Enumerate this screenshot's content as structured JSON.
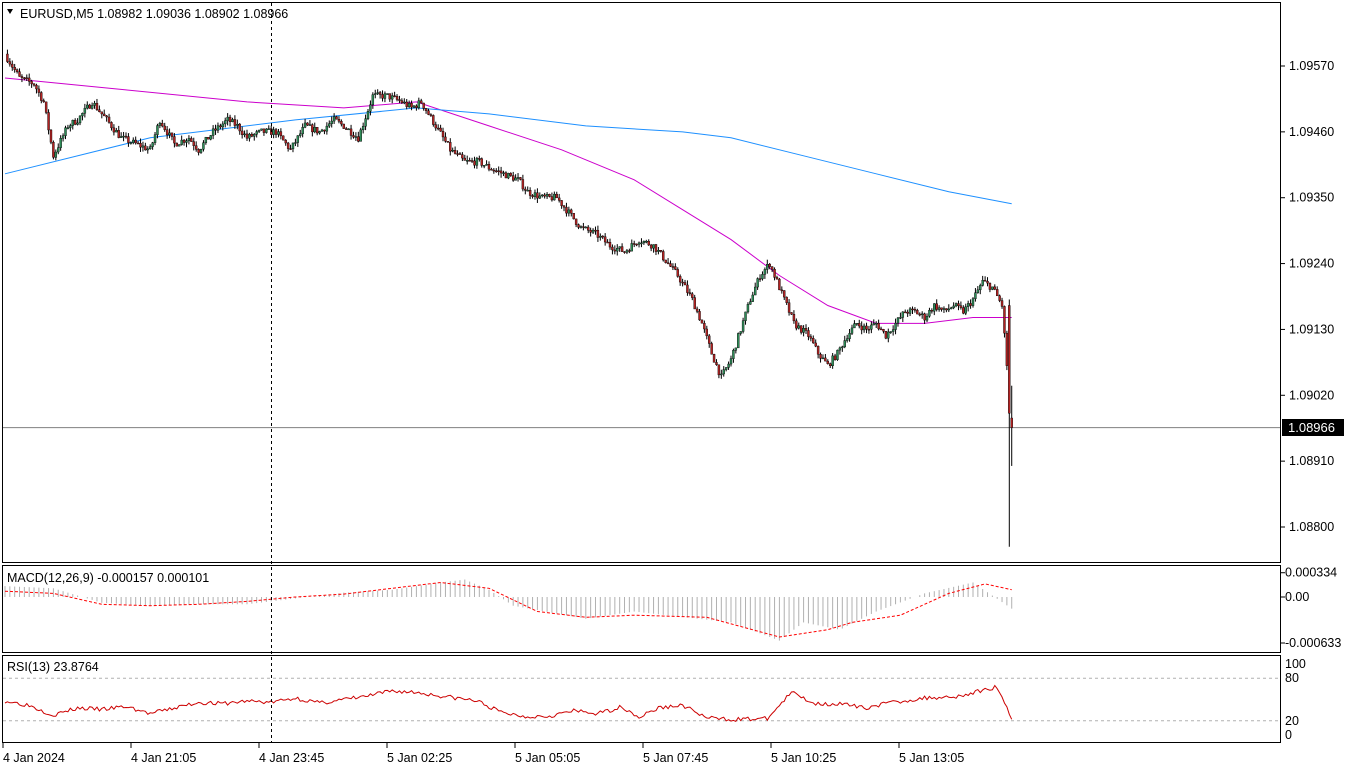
{
  "chart_data": [
    {
      "type": "candlestick",
      "title": "EURUSD,M5  1.08982 1.09036 1.08902 1.08966",
      "symbol": "EURUSD",
      "timeframe": "M5",
      "ohlc_last": {
        "open": 1.08982,
        "high": 1.09036,
        "low": 1.08902,
        "close": 1.08966
      },
      "current_price": "1.08966",
      "ylim": [
        1.0875,
        1.0962
      ],
      "y_ticks": [
        1.0957,
        1.0946,
        1.0935,
        1.0924,
        1.0913,
        1.0902,
        1.0891,
        1.088
      ],
      "y_tick_labels": [
        "1.09570",
        "1.09460",
        "1.09350",
        "1.09240",
        "1.09130",
        "1.09020",
        "1.08910",
        "1.08800"
      ],
      "x_tick_labels": [
        "4 Jan 2024",
        "4 Jan 21:05",
        "4 Jan 23:45",
        "5 Jan 02:25",
        "5 Jan 05:05",
        "5 Jan 07:45",
        "5 Jan 10:25",
        "5 Jan 13:05"
      ],
      "price_path": [
        [
          0,
          1.0959
        ],
        [
          6,
          1.0955
        ],
        [
          12,
          1.0954
        ],
        [
          16,
          1.0951
        ],
        [
          20,
          1.0942
        ],
        [
          26,
          1.0947
        ],
        [
          30,
          1.0948
        ],
        [
          36,
          1.0951
        ],
        [
          42,
          1.0948
        ],
        [
          48,
          1.0945
        ],
        [
          54,
          1.0944
        ],
        [
          60,
          1.0943
        ],
        [
          64,
          1.0948
        ],
        [
          70,
          1.0944
        ],
        [
          76,
          1.0945
        ],
        [
          80,
          1.0943
        ],
        [
          86,
          1.0946
        ],
        [
          92,
          1.0948
        ],
        [
          96,
          1.0947
        ],
        [
          100,
          1.0945
        ],
        [
          106,
          1.0946
        ],
        [
          112,
          1.0946
        ],
        [
          118,
          1.0943
        ],
        [
          124,
          1.0947
        ],
        [
          130,
          1.0946
        ],
        [
          136,
          1.0948
        ],
        [
          140,
          1.0947
        ],
        [
          146,
          1.0945
        ],
        [
          152,
          1.0952
        ],
        [
          158,
          1.0952
        ],
        [
          164,
          1.0951
        ],
        [
          168,
          1.095
        ],
        [
          172,
          1.0951
        ],
        [
          178,
          1.0947
        ],
        [
          184,
          1.0943
        ],
        [
          190,
          1.0941
        ],
        [
          196,
          1.0941
        ],
        [
          200,
          1.094
        ],
        [
          206,
          1.0939
        ],
        [
          212,
          1.0938
        ],
        [
          216,
          1.0936
        ],
        [
          222,
          1.0935
        ],
        [
          228,
          1.0935
        ],
        [
          234,
          1.0932
        ],
        [
          238,
          1.093
        ],
        [
          244,
          1.0929
        ],
        [
          250,
          1.0927
        ],
        [
          256,
          1.0926
        ],
        [
          262,
          1.0928
        ],
        [
          268,
          1.0927
        ],
        [
          272,
          1.0925
        ],
        [
          278,
          1.0922
        ],
        [
          284,
          1.0918
        ],
        [
          288,
          1.0914
        ],
        [
          292,
          1.0909
        ],
        [
          296,
          1.0905
        ],
        [
          300,
          1.0908
        ],
        [
          304,
          1.0913
        ],
        [
          308,
          1.0918
        ],
        [
          312,
          1.0922
        ],
        [
          316,
          1.0924
        ],
        [
          320,
          1.092
        ],
        [
          326,
          1.0914
        ],
        [
          332,
          1.0912
        ],
        [
          336,
          1.0909
        ],
        [
          340,
          1.0907
        ],
        [
          344,
          1.0909
        ],
        [
          348,
          1.0912
        ],
        [
          352,
          1.0914
        ],
        [
          356,
          1.0913
        ],
        [
          360,
          1.0914
        ],
        [
          364,
          1.0912
        ],
        [
          368,
          1.0914
        ],
        [
          372,
          1.0916
        ],
        [
          376,
          1.0916
        ],
        [
          380,
          1.0915
        ],
        [
          384,
          1.0917
        ],
        [
          388,
          1.0916
        ],
        [
          392,
          1.0917
        ],
        [
          396,
          1.0916
        ],
        [
          400,
          1.0918
        ],
        [
          404,
          1.0921
        ],
        [
          408,
          1.092
        ],
        [
          412,
          1.0917
        ],
        [
          416,
          1.0897
        ]
      ],
      "series": [
        {
          "name": "",
          "color": "#cc00cc",
          "values": [
            [
              0,
              1.0955
            ],
            [
              50,
              1.0953
            ],
            [
              100,
              1.0951
            ],
            [
              140,
              1.095
            ],
            [
              170,
              1.0951
            ],
            [
              200,
              1.0947
            ],
            [
              230,
              1.0943
            ],
            [
              260,
              1.0938
            ],
            [
              280,
              1.0933
            ],
            [
              300,
              1.0928
            ],
            [
              320,
              1.0922
            ],
            [
              340,
              1.0917
            ],
            [
              360,
              1.0914
            ],
            [
              380,
              1.0914
            ],
            [
              400,
              1.0915
            ],
            [
              416,
              1.0915
            ]
          ]
        },
        {
          "name": "",
          "color": "#1e90ff",
          "values": [
            [
              0,
              1.0939
            ],
            [
              60,
              1.0945
            ],
            [
              120,
              1.0948
            ],
            [
              170,
              1.095
            ],
            [
              200,
              1.0949
            ],
            [
              240,
              1.0947
            ],
            [
              280,
              1.0946
            ],
            [
              300,
              1.0945
            ],
            [
              330,
              1.0942
            ],
            [
              360,
              1.0939
            ],
            [
              390,
              1.0936
            ],
            [
              416,
              1.0934
            ]
          ]
        }
      ]
    },
    {
      "type": "histogram",
      "title": "MACD(12,26,9) -0.000157 0.000101",
      "indicator": "MACD(12,26,9)",
      "values_shown": [
        "-0.000157",
        "0.000101"
      ],
      "ylim": [
        -0.0007,
        0.0004
      ],
      "y_tick_labels": [
        "0.000334",
        "0.00",
        "-0.000633"
      ],
      "main_values": [
        [
          0,
          0.00015
        ],
        [
          20,
          0.00012
        ],
        [
          40,
          -8e-05
        ],
        [
          60,
          -0.00012
        ],
        [
          80,
          -0.0001
        ],
        [
          100,
          -0.0001
        ],
        [
          120,
          -2e-05
        ],
        [
          140,
          6e-05
        ],
        [
          160,
          0.0001
        ],
        [
          180,
          0.0002
        ],
        [
          190,
          0.00024
        ],
        [
          200,
          0.0001
        ],
        [
          210,
          -0.00012
        ],
        [
          240,
          -0.0003
        ],
        [
          260,
          -0.0002
        ],
        [
          300,
          -0.00035
        ],
        [
          320,
          -0.0006
        ],
        [
          330,
          -0.00035
        ],
        [
          345,
          -0.00045
        ],
        [
          360,
          -0.0002
        ],
        [
          380,
          5e-05
        ],
        [
          400,
          0.0002
        ],
        [
          416,
          -0.00016
        ]
      ],
      "signal_values": [
        [
          0,
          8e-05
        ],
        [
          20,
          5e-05
        ],
        [
          40,
          -0.0001
        ],
        [
          60,
          -0.00012
        ],
        [
          80,
          -0.0001
        ],
        [
          100,
          -6e-05
        ],
        [
          120,
          0
        ],
        [
          140,
          4e-05
        ],
        [
          160,
          0.00012
        ],
        [
          180,
          0.0002
        ],
        [
          200,
          0.00012
        ],
        [
          220,
          -0.0002
        ],
        [
          240,
          -0.00028
        ],
        [
          260,
          -0.00025
        ],
        [
          290,
          -0.00028
        ],
        [
          320,
          -0.00055
        ],
        [
          340,
          -0.00045
        ],
        [
          350,
          -0.00035
        ],
        [
          370,
          -0.00025
        ],
        [
          390,
          5e-05
        ],
        [
          405,
          0.00018
        ],
        [
          416,
          0.0001
        ]
      ]
    },
    {
      "type": "line",
      "title": "RSI(13) 23.8764",
      "indicator": "RSI(13)",
      "value_shown": "23.8764",
      "ylim": [
        0,
        100
      ],
      "y_tick_labels": [
        "100",
        "80",
        "20",
        "0"
      ],
      "levels": [
        80,
        20
      ],
      "values": [
        [
          0,
          48
        ],
        [
          10,
          42
        ],
        [
          20,
          28
        ],
        [
          30,
          38
        ],
        [
          40,
          36
        ],
        [
          50,
          40
        ],
        [
          60,
          30
        ],
        [
          70,
          38
        ],
        [
          80,
          46
        ],
        [
          90,
          44
        ],
        [
          100,
          48
        ],
        [
          110,
          46
        ],
        [
          120,
          52
        ],
        [
          130,
          45
        ],
        [
          140,
          50
        ],
        [
          150,
          55
        ],
        [
          160,
          62
        ],
        [
          170,
          60
        ],
        [
          180,
          55
        ],
        [
          195,
          48
        ],
        [
          205,
          32
        ],
        [
          215,
          26
        ],
        [
          225,
          27
        ],
        [
          235,
          34
        ],
        [
          245,
          30
        ],
        [
          255,
          40
        ],
        [
          262,
          25
        ],
        [
          270,
          38
        ],
        [
          280,
          42
        ],
        [
          290,
          24
        ],
        [
          300,
          22
        ],
        [
          315,
          23
        ],
        [
          325,
          60
        ],
        [
          335,
          44
        ],
        [
          345,
          44
        ],
        [
          355,
          38
        ],
        [
          365,
          45
        ],
        [
          380,
          52
        ],
        [
          395,
          55
        ],
        [
          410,
          68
        ],
        [
          416,
          23.8764
        ]
      ]
    }
  ],
  "crosshair_label": "4 Jan 23:45"
}
